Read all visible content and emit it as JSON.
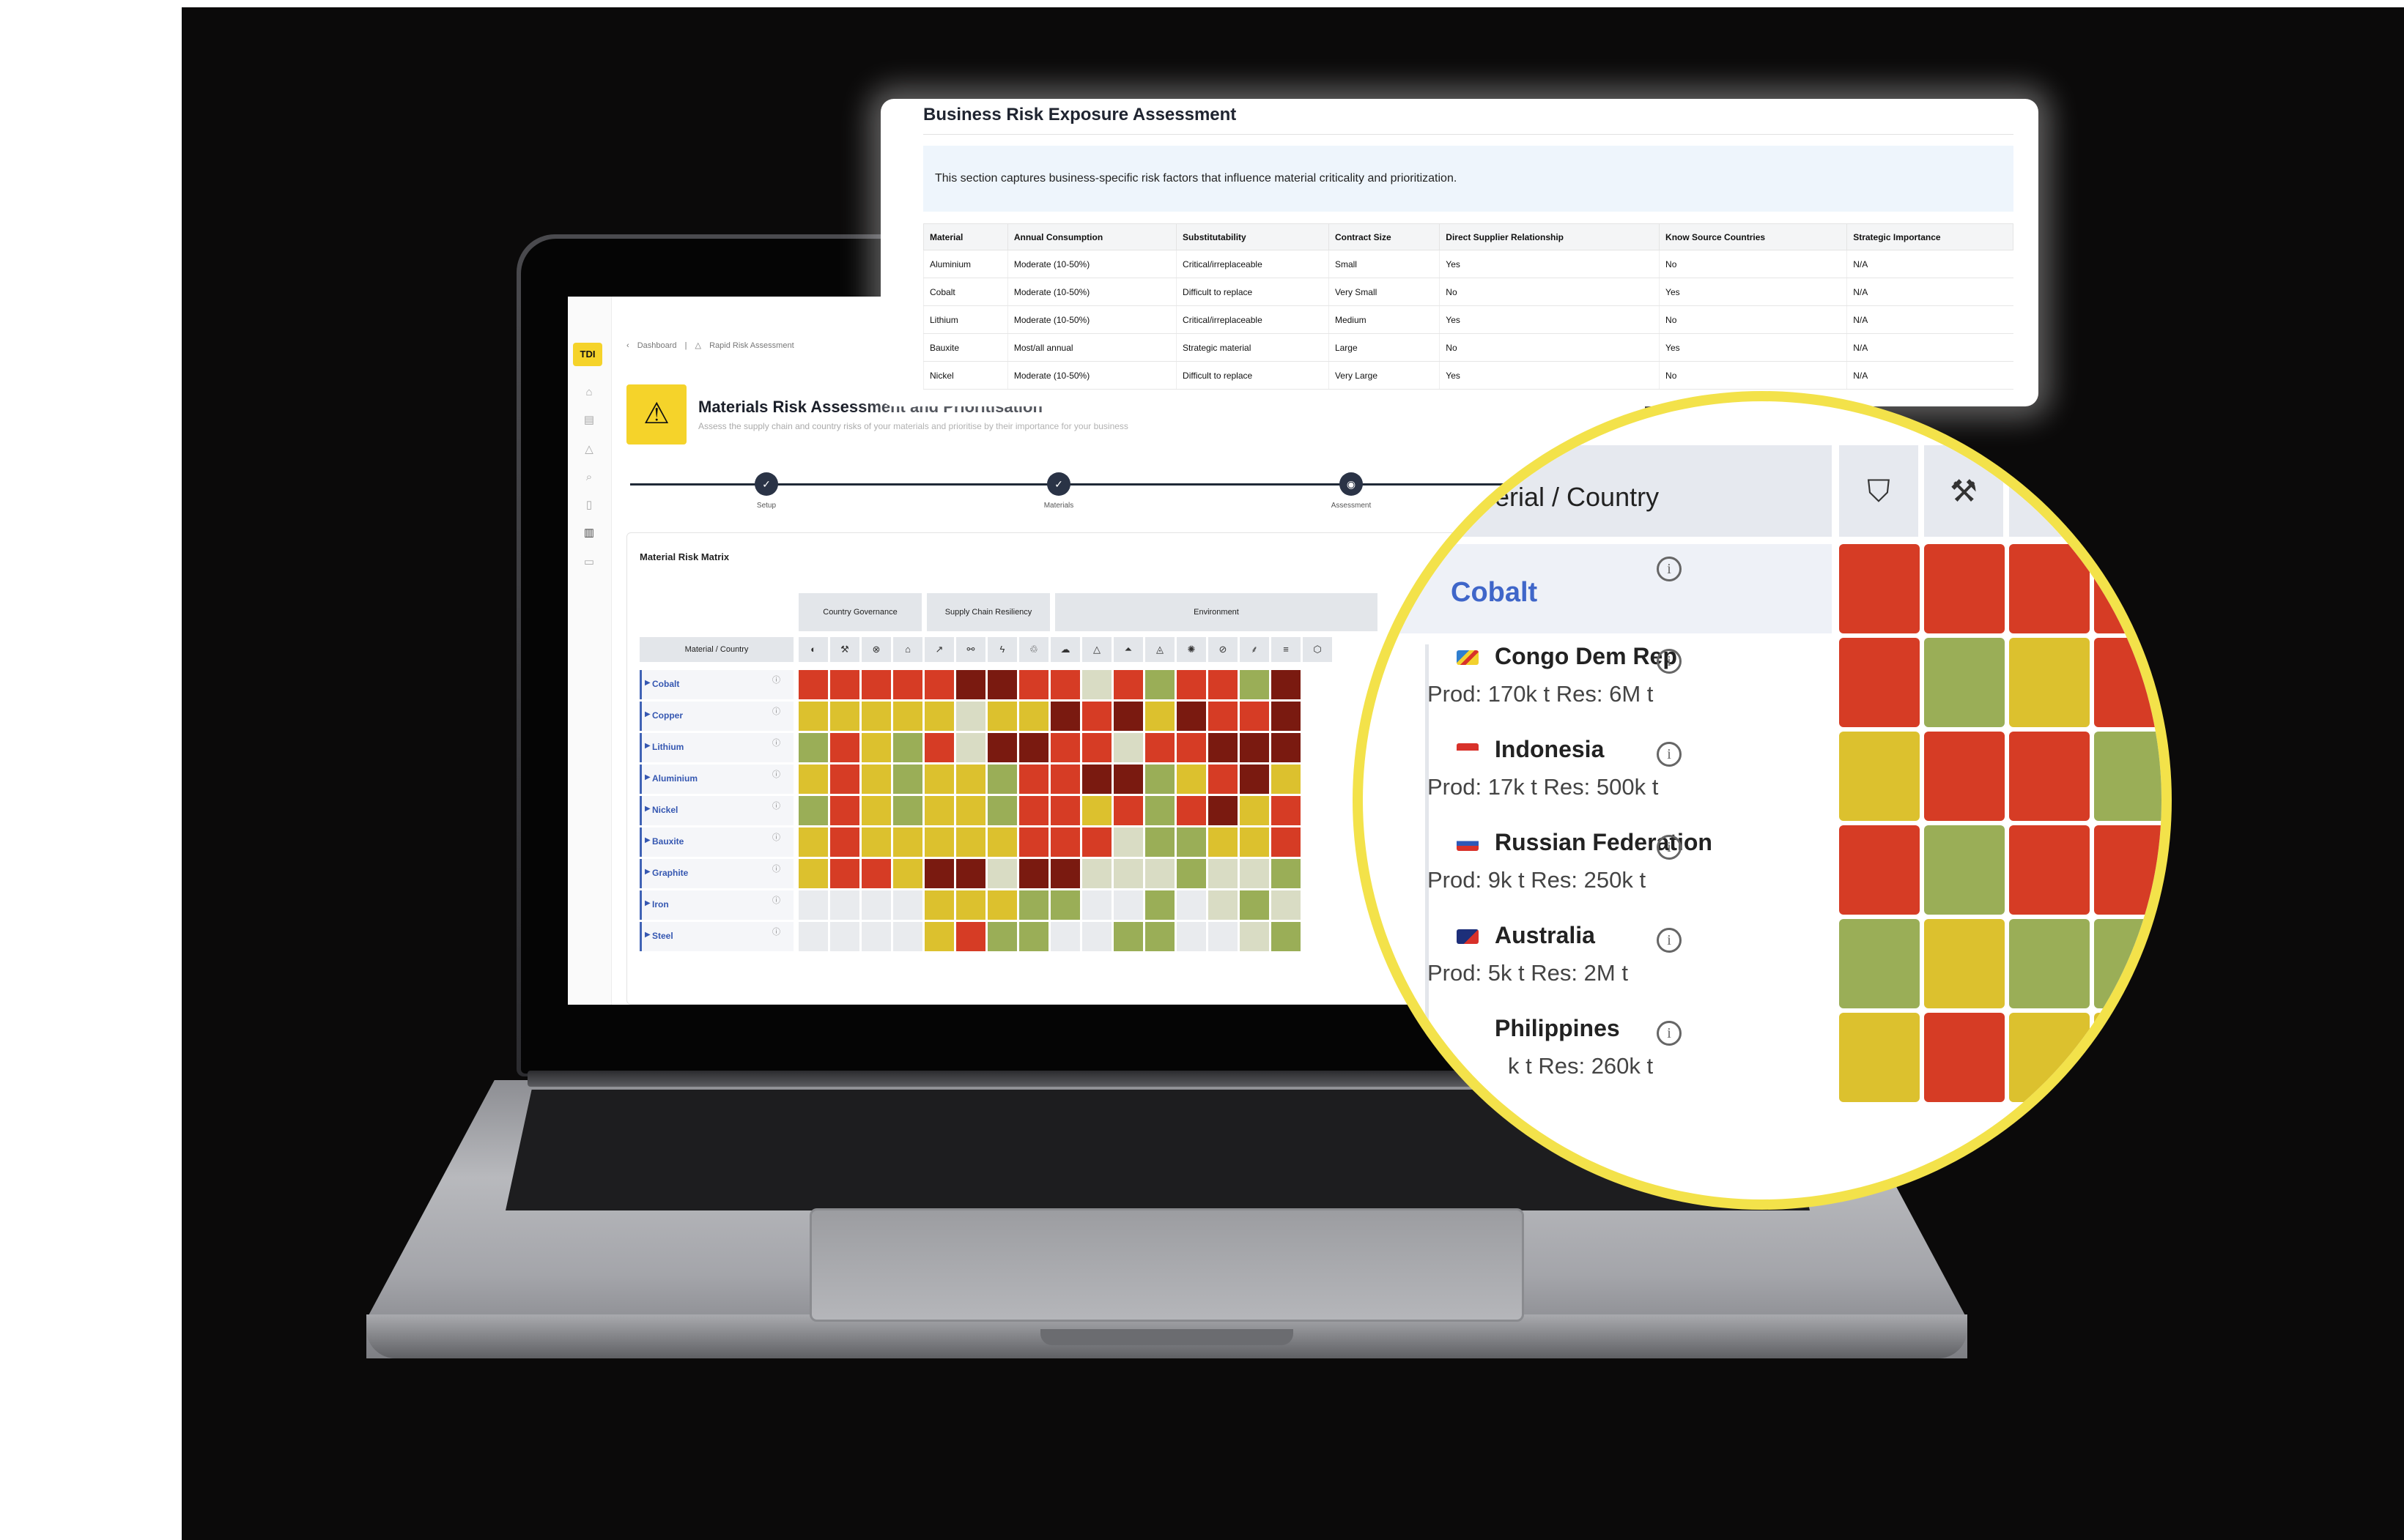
{
  "app": {
    "logo": "TDI",
    "breadcrumb": [
      "Dashboard",
      "Rapid Risk Assessment"
    ],
    "title": "Materials Risk Assessment and Prioritisation",
    "subtitle": "Assess the supply chain and country risks of your materials and prioritise by their importance for your business",
    "steps": [
      "Setup",
      "Materials",
      "Assessment"
    ],
    "matrix_title": "Material Risk Matrix",
    "matrix_header": "Material / Country",
    "groups": [
      "Country Governance",
      "Supply Chain Resiliency",
      "Environment"
    ],
    "materials": [
      "Cobalt",
      "Copper",
      "Lithium",
      "Aluminium",
      "Nickel",
      "Bauxite",
      "Graphite",
      "Iron",
      "Steel"
    ]
  },
  "business_table": {
    "title": "Business Risk Exposure Assessment",
    "note": "This section captures business-specific risk factors that influence material criticality and prioritization.",
    "columns": [
      "Material",
      "Annual Consumption",
      "Substitutability",
      "Contract Size",
      "Direct Supplier Relationship",
      "Know Source Countries",
      "Strategic Importance"
    ],
    "rows": [
      [
        "Aluminium",
        "Moderate (10-50%)",
        "Critical/irreplaceable",
        "Small",
        "Yes",
        "No",
        "N/A"
      ],
      [
        "Cobalt",
        "Moderate (10-50%)",
        "Difficult to replace",
        "Very Small",
        "No",
        "Yes",
        "N/A"
      ],
      [
        "Lithium",
        "Moderate (10-50%)",
        "Critical/irreplaceable",
        "Medium",
        "Yes",
        "No",
        "N/A"
      ],
      [
        "Bauxite",
        "Most/all annual",
        "Strategic material",
        "Large",
        "No",
        "Yes",
        "N/A"
      ],
      [
        "Nickel",
        "Moderate (10-50%)",
        "Difficult to replace",
        "Very Large",
        "Yes",
        "No",
        "N/A"
      ]
    ]
  },
  "magnifier": {
    "header": "erial / Country",
    "material": "Cobalt",
    "countries": [
      {
        "name": "Congo Dem Rep",
        "stats": "Prod: 170k t  Res: 6M t"
      },
      {
        "name": "Indonesia",
        "stats": "Prod: 17k t  Res: 500k t"
      },
      {
        "name": "Russian Federation",
        "stats": "Prod: 9k t  Res: 250k t"
      },
      {
        "name": "Australia",
        "stats": "Prod: 5k t  Res: 2M t"
      },
      {
        "name": "Philippines",
        "stats": "k t  Res: 260k t"
      }
    ]
  },
  "colors": {
    "red": "#d63c25",
    "dark_red": "#7a1a10",
    "yellow": "#dcc12e",
    "green": "#9aae57",
    "pale": "#d9dcc4",
    "empty": "#e9ebee",
    "highlight": "#f3e24a"
  }
}
